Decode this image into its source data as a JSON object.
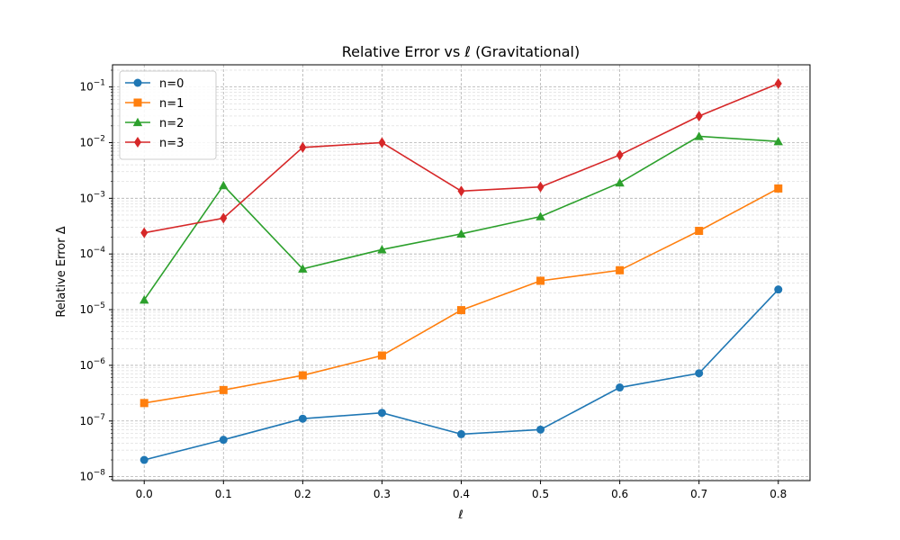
{
  "chart_data": {
    "type": "line",
    "title": "Relative Error vs ℓ (Gravitational)",
    "xlabel": "ℓ",
    "ylabel": "Relative Error Δ",
    "yscale": "log",
    "xlim": [
      -0.04,
      0.84
    ],
    "ylim": [
      8.5e-09,
      0.25
    ],
    "x": [
      0.0,
      0.1,
      0.2,
      0.3,
      0.4,
      0.5,
      0.6,
      0.7,
      0.8
    ],
    "x_tick_labels": [
      "0.0",
      "0.1",
      "0.2",
      "0.3",
      "0.4",
      "0.5",
      "0.6",
      "0.7",
      "0.8"
    ],
    "y_tick_exponents": [
      -8,
      -7,
      -6,
      -5,
      -4,
      -3,
      -2,
      -1
    ],
    "grid": true,
    "legend_position": "top-left",
    "series": [
      {
        "name": "n=0",
        "color": "#1f77b4",
        "marker": "circle",
        "values": [
          2e-08,
          4.6e-08,
          1.1e-07,
          1.4e-07,
          5.8e-08,
          7e-08,
          4e-07,
          7.2e-07,
          2.3e-05
        ]
      },
      {
        "name": "n=1",
        "color": "#ff7f0e",
        "marker": "square",
        "values": [
          2.1e-07,
          3.6e-07,
          6.6e-07,
          1.5e-06,
          9.8e-06,
          3.3e-05,
          5.1e-05,
          0.00026,
          0.0015
        ]
      },
      {
        "name": "n=2",
        "color": "#2ca02c",
        "marker": "triangle",
        "values": [
          1.5e-05,
          0.0017,
          5.4e-05,
          0.00012,
          0.00023,
          0.00047,
          0.0019,
          0.013,
          0.0105
        ]
      },
      {
        "name": "n=3",
        "color": "#d62728",
        "marker": "diamond",
        "values": [
          0.00024,
          0.00044,
          0.0082,
          0.01,
          0.00135,
          0.0016,
          0.006,
          0.03,
          0.115
        ]
      }
    ]
  }
}
